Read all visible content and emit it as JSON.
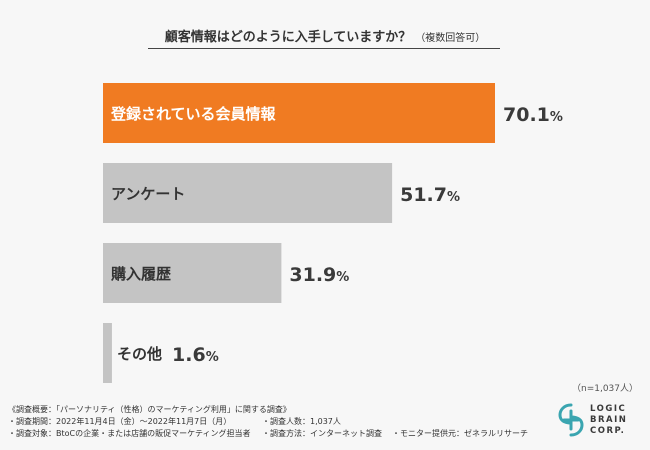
{
  "title": "顧客情報はどのように入手していますか？",
  "title_note": "（複数回答可）",
  "sample_note": "（n=1,037人）",
  "chart_data": {
    "type": "bar",
    "orientation": "horizontal",
    "categories": [
      "登録されている会員情報",
      "アンケート",
      "購入履歴",
      "その他"
    ],
    "values": [
      70.1,
      51.7,
      31.9,
      1.6
    ],
    "value_labels": [
      "70.1%",
      "51.7%",
      "31.9%",
      "1.6%"
    ],
    "unit": "%",
    "highlight_index": 0,
    "xlim": [
      0,
      100
    ],
    "grid": false,
    "legend": "none",
    "colors": {
      "highlight": "#f07b22",
      "default": "#c4c4c4",
      "highlight_text": "#ffffff",
      "label_text": "#333333"
    }
  },
  "survey": {
    "outline": "《調査概要：「パーソナリティ（性格）のマーケティング利用」に関する調査》",
    "period": "・調査期間：2022年11月4日（金）〜2022年11月7日（月）",
    "respondents": "・調査人数：1,037人",
    "target": "・調査対象：BtoCの企業・または店舗の販促マーケティング担当者",
    "method": "・調査方法：インターネット調査",
    "provider": "・モニター提供元：ゼネラルリサーチ"
  },
  "logo": {
    "lines": [
      "LOGIC",
      "BRAIN",
      "CORP."
    ],
    "color": "#3aa5b0"
  }
}
